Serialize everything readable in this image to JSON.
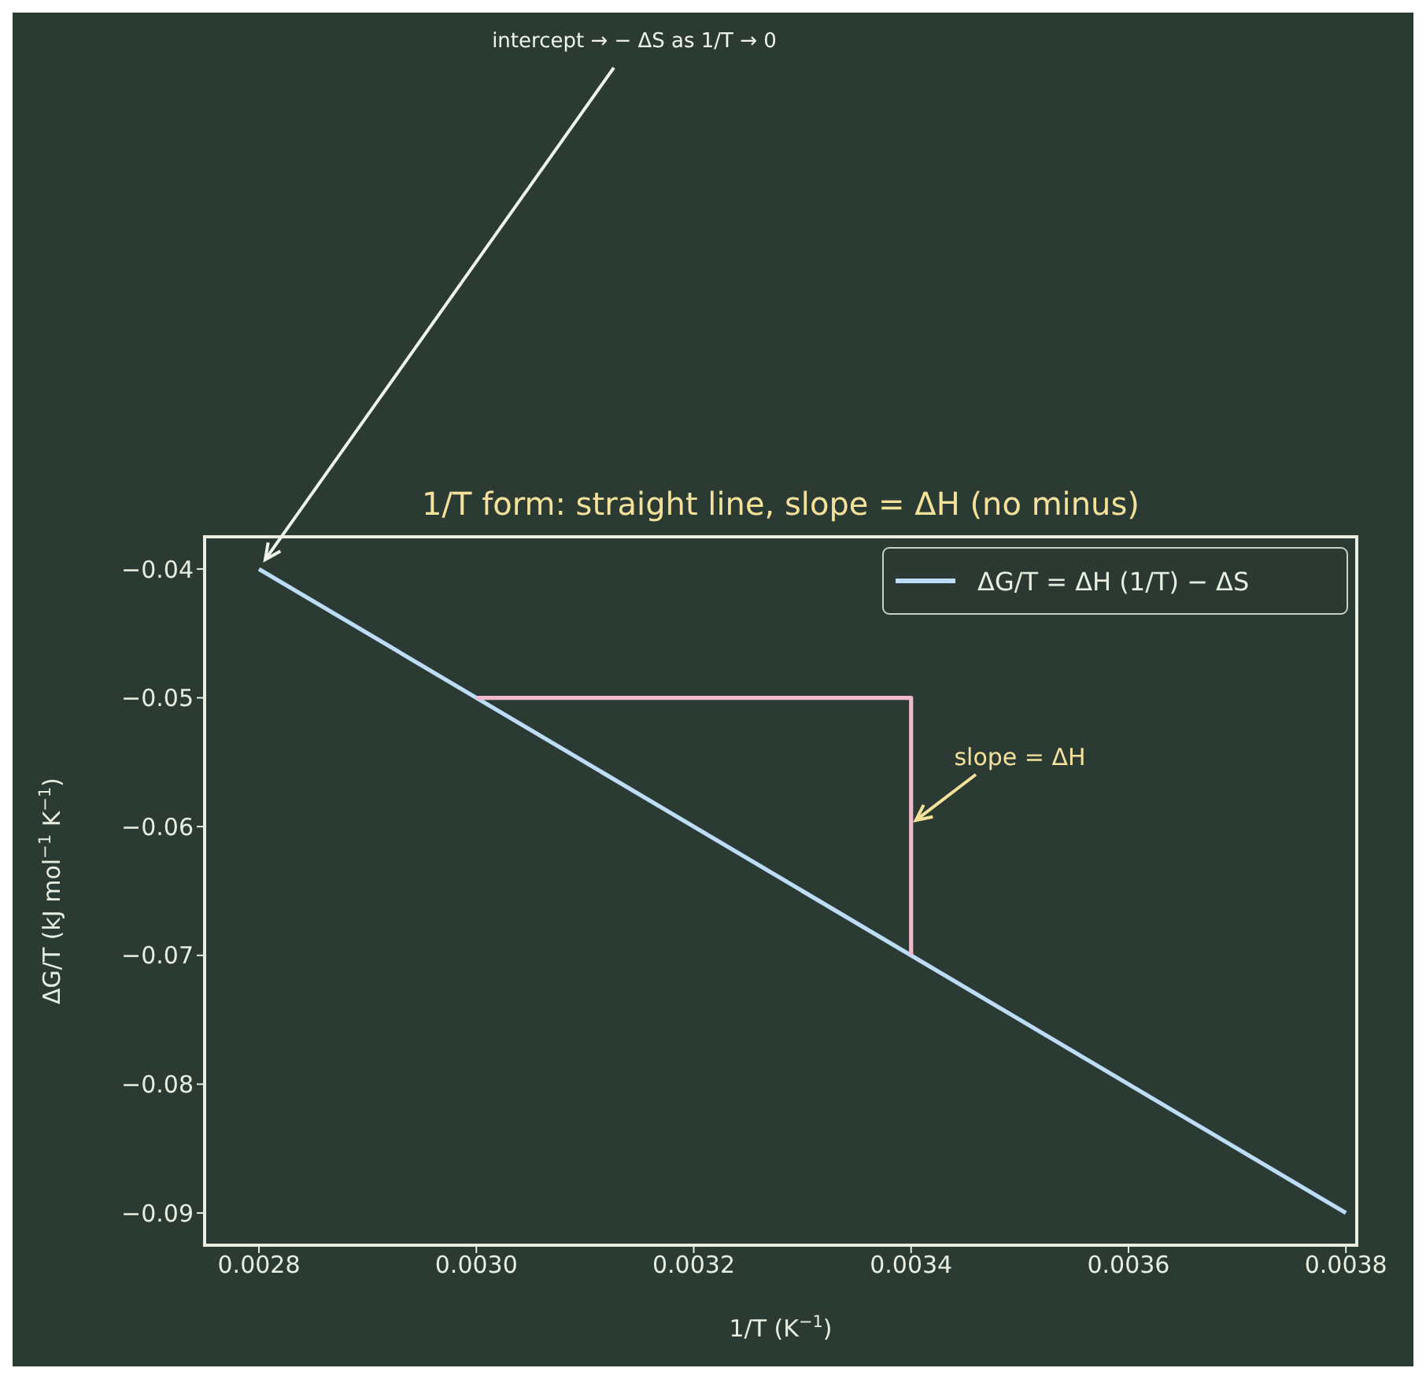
{
  "chart_data": {
    "type": "line",
    "title": "1/T form: straight line, slope  = ΔH (no minus)",
    "xlabel": "1/T  (K$^{−1}$)",
    "ylabel": "ΔG/T  (kJ mol$^{−1}$ K$^{−1}$)",
    "annotations": [
      {
        "text": "intercept  → − ΔS as 1/T → 0",
        "x": 0.0028,
        "y": -0.04
      },
      {
        "text": "slope  = ΔH",
        "x": 0.0034,
        "y": -0.06
      }
    ],
    "series": [
      {
        "name": "ΔG/T = ΔH (1/T) − ΔS",
        "color": "#bcdcf8",
        "x": [
          0.0028,
          0.0038
        ],
        "values": [
          -0.04,
          -0.09
        ]
      },
      {
        "color": "#f4b8cc",
        "x": [
          0.003,
          0.0034,
          0.0034
        ],
        "values": [
          -0.05,
          -0.05,
          -0.07
        ]
      }
    ],
    "xlim": [
      0.00275,
      0.00381
    ],
    "ylim": [
      -0.0925,
      -0.0375
    ],
    "xticks": [
      0.0028,
      {
        "value": 0.003,
        "label": "0.0030"
      },
      0.0032,
      0.0034,
      0.0036,
      0.0038
    ],
    "yticks": [
      -0.09,
      -0.08,
      -0.07,
      -0.06,
      -0.05,
      -0.04
    ],
    "legend": "top right"
  }
}
